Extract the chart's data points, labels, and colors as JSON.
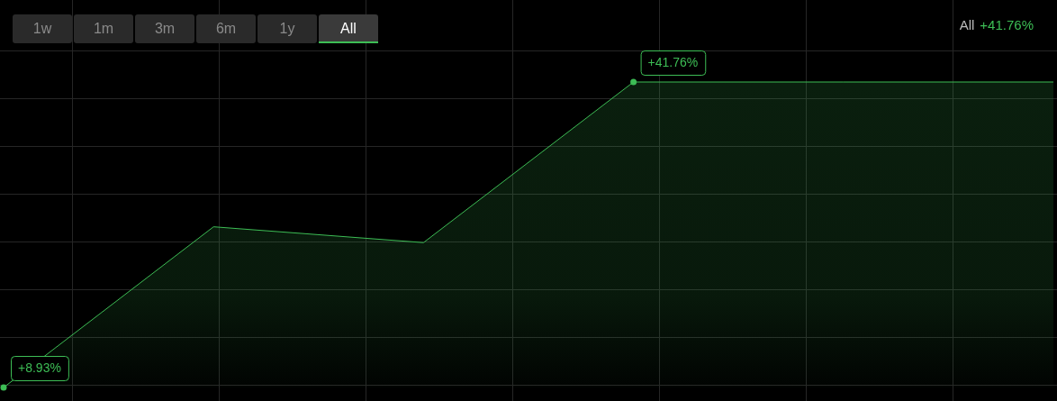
{
  "chart_data": {
    "type": "area",
    "title": "All",
    "subtitle": "+41.76%",
    "annotations": [
      "1w",
      "1m",
      "3m",
      "6m",
      "1y",
      "All"
    ],
    "categories": [
      null,
      null,
      null,
      null,
      null,
      null
    ],
    "series": [
      {
        "color": "#3dbd55",
        "values": [
          8.93,
          26.2,
          24.5,
          41.76,
          41.76,
          41.76
        ],
        "value_labels": [
          "+8.93%",
          null,
          null,
          "+41.76%",
          null,
          null
        ]
      }
    ],
    "grid": true,
    "legend": false,
    "line_style": "solid",
    "tick_labels": false
  }
}
